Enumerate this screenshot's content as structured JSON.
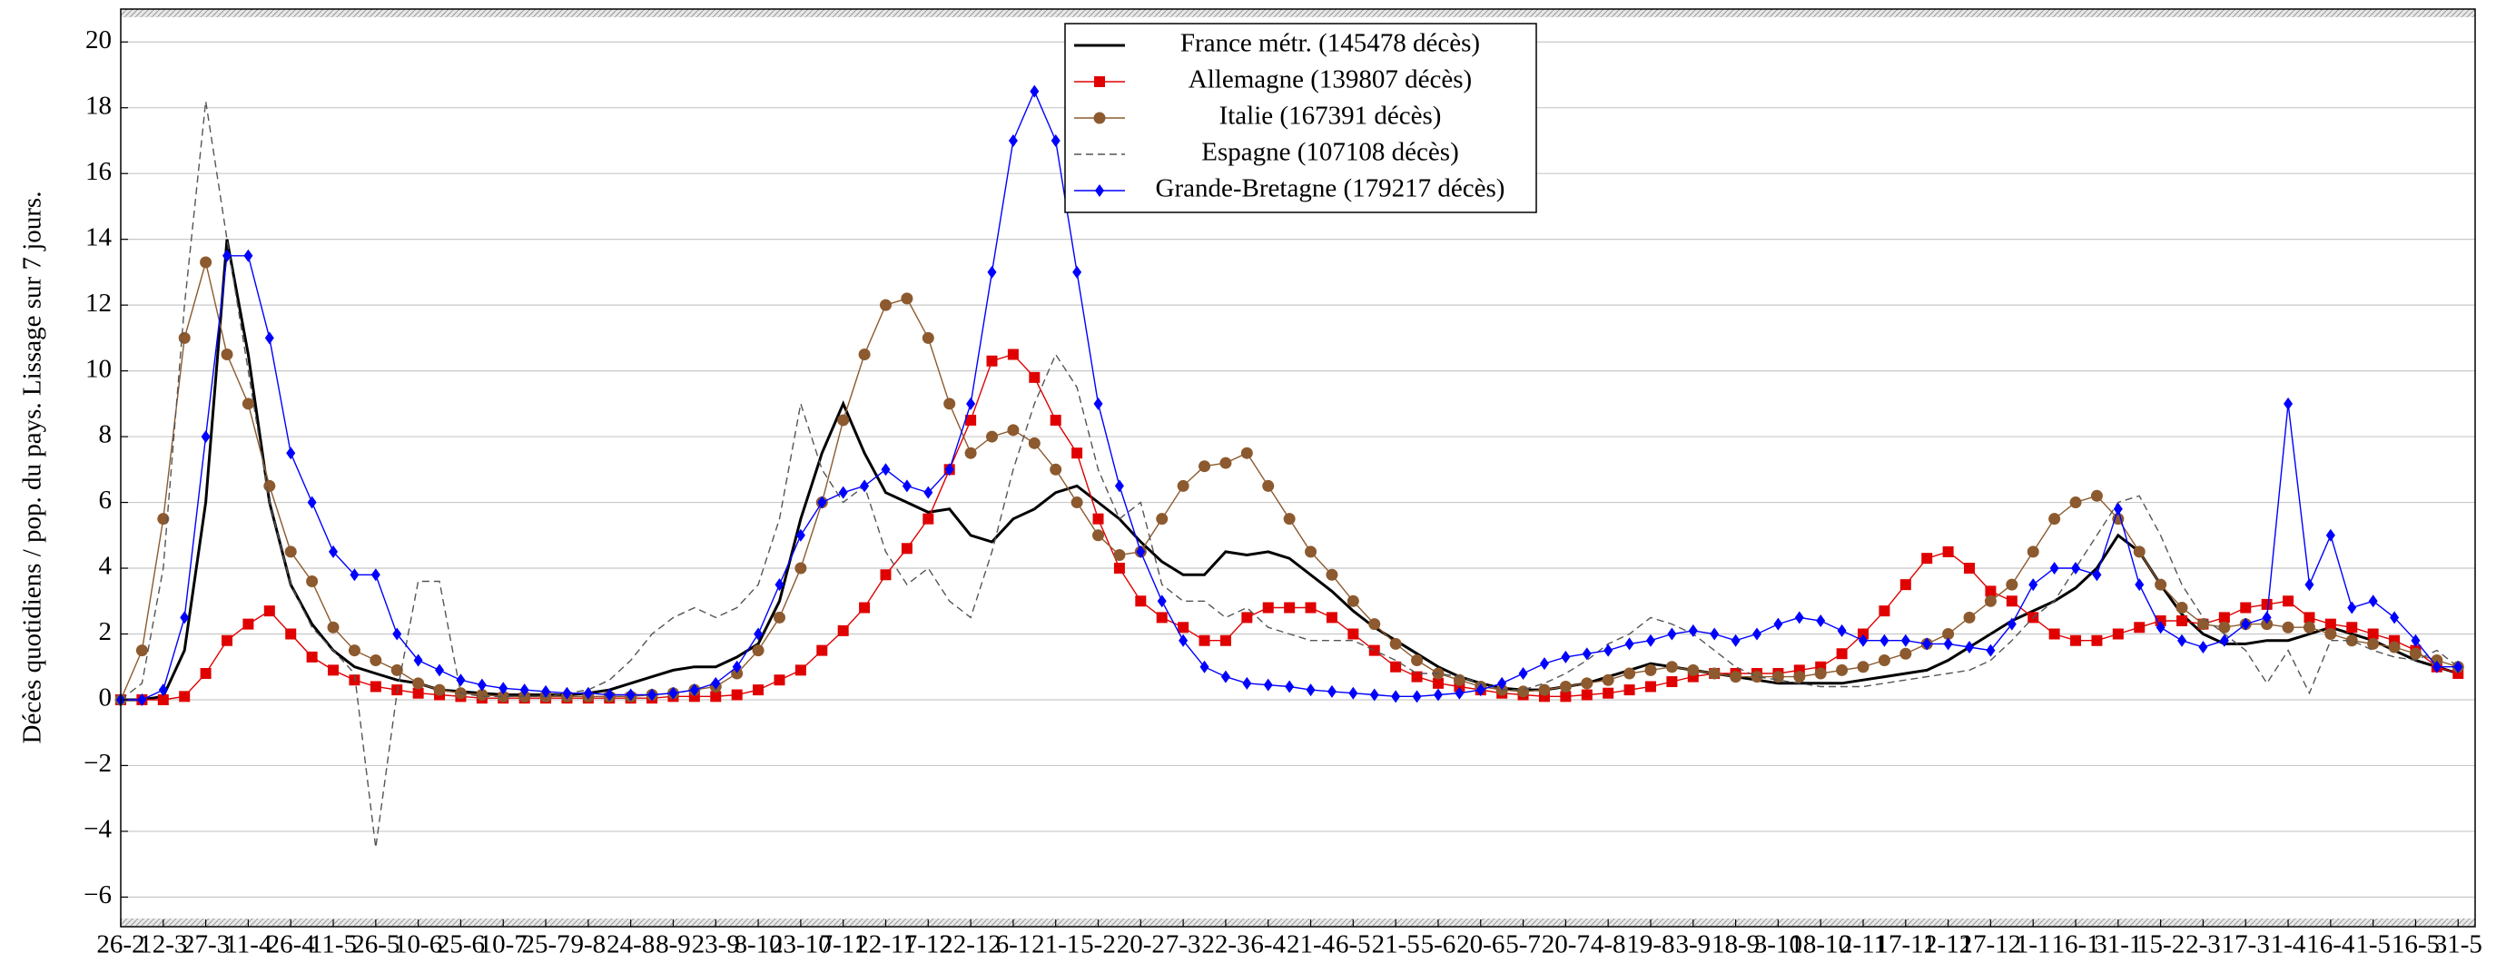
{
  "chart_data": {
    "type": "line",
    "y_label": "Décès quotidiens / pop. du pays. Lissage sur 7 jours.",
    "categories": [
      "26-2",
      null,
      "12-3",
      null,
      "27-3",
      null,
      "11-4",
      null,
      "26-4",
      null,
      "11-5",
      null,
      "26-5",
      null,
      "10-6",
      null,
      "25-6",
      null,
      "10-7",
      null,
      "25-7",
      null,
      "9-8",
      null,
      "24-8",
      null,
      "8-9",
      null,
      "23-9",
      null,
      "8-10",
      null,
      "23-10",
      null,
      "7-11",
      null,
      "22-11",
      null,
      "7-12",
      null,
      "22-12",
      null,
      "6-1",
      null,
      "21-1",
      null,
      "5-2",
      null,
      "20-2",
      null,
      "7-3",
      null,
      "22-3",
      null,
      "6-4",
      null,
      "21-4",
      null,
      "6-5",
      null,
      "21-5",
      null,
      "5-6",
      null,
      "20-6",
      null,
      "5-7",
      null,
      "20-7",
      null,
      "4-8",
      null,
      "19-8",
      null,
      "3-9",
      null,
      "18-9",
      null,
      "3-10",
      null,
      "18-10",
      null,
      "2-11",
      null,
      "17-11",
      null,
      "2-12",
      null,
      "17-12",
      null,
      "1-1",
      null,
      "16-1",
      null,
      "31-1",
      null,
      "15-2",
      null,
      "2-3",
      null,
      "17-3",
      null,
      "1-4",
      null,
      "16-4",
      null,
      "1-5",
      null,
      "16-5",
      null,
      "31-5"
    ],
    "series": [
      {
        "name": "France métr. (145478 décès)",
        "color": "#000000",
        "marker": "none",
        "dashed": false,
        "values": [
          0,
          0,
          0.1,
          1.5,
          6,
          14,
          10.5,
          6,
          3.5,
          2.3,
          1.5,
          1,
          0.8,
          0.6,
          0.5,
          0.3,
          0.25,
          0.2,
          0.15,
          0.15,
          0.15,
          0.15,
          0.2,
          0.3,
          0.5,
          0.7,
          0.9,
          1.0,
          1.0,
          1.3,
          1.7,
          3,
          5.5,
          7.5,
          9,
          7.5,
          6.3,
          6,
          5.7,
          5.8,
          5,
          4.8,
          5.5,
          5.8,
          6.3,
          6.5,
          6,
          5.5,
          4.8,
          4.2,
          3.8,
          3.8,
          4.5,
          4.4,
          4.5,
          4.3,
          3.8,
          3.3,
          2.7,
          2.2,
          1.8,
          1.4,
          1.0,
          0.7,
          0.5,
          0.35,
          0.3,
          0.3,
          0.4,
          0.5,
          0.7,
          0.9,
          1.1,
          1.0,
          0.9,
          0.8,
          0.7,
          0.6,
          0.5,
          0.5,
          0.5,
          0.5,
          0.6,
          0.7,
          0.8,
          0.9,
          1.2,
          1.6,
          2.0,
          2.4,
          2.7,
          3.0,
          3.4,
          4.0,
          5.0,
          4.5,
          3.5,
          2.6,
          2.0,
          1.7,
          1.7,
          1.8,
          1.8,
          2.0,
          2.2,
          2.0,
          1.8,
          1.5,
          1.2,
          1.0,
          0.8
        ]
      },
      {
        "name": "Allemagne (139807 décès)",
        "color": "#e00000",
        "marker": "square",
        "dashed": false,
        "values": [
          0,
          0,
          0,
          0.1,
          0.8,
          1.8,
          2.3,
          2.7,
          2.0,
          1.3,
          0.9,
          0.6,
          0.4,
          0.3,
          0.2,
          0.15,
          0.1,
          0.05,
          0.05,
          0.05,
          0.05,
          0.05,
          0.05,
          0.05,
          0.05,
          0.05,
          0.1,
          0.1,
          0.1,
          0.15,
          0.3,
          0.6,
          0.9,
          1.5,
          2.1,
          2.8,
          3.8,
          4.6,
          5.5,
          7,
          8.5,
          10.3,
          10.5,
          9.8,
          8.5,
          7.5,
          5.5,
          4.0,
          3.0,
          2.5,
          2.2,
          1.8,
          1.8,
          2.5,
          2.8,
          2.8,
          2.8,
          2.5,
          2.0,
          1.5,
          1.0,
          0.7,
          0.5,
          0.4,
          0.3,
          0.2,
          0.15,
          0.1,
          0.1,
          0.15,
          0.2,
          0.3,
          0.4,
          0.55,
          0.7,
          0.8,
          0.8,
          0.8,
          0.8,
          0.9,
          1.0,
          1.4,
          2.0,
          2.7,
          3.5,
          4.3,
          4.5,
          4.0,
          3.3,
          3.0,
          2.5,
          2.0,
          1.8,
          1.8,
          2.0,
          2.2,
          2.4,
          2.4,
          2.3,
          2.5,
          2.8,
          2.9,
          3.0,
          2.5,
          2.3,
          2.2,
          2.0,
          1.8,
          1.5,
          1.0,
          0.8
        ]
      },
      {
        "name": "Italie (167391 décès)",
        "color": "#8c5a2e",
        "marker": "circle",
        "dashed": false,
        "values": [
          0,
          1.5,
          5.5,
          11,
          13.3,
          10.5,
          9,
          6.5,
          4.5,
          3.6,
          2.2,
          1.5,
          1.2,
          0.9,
          0.5,
          0.3,
          0.2,
          0.15,
          0.1,
          0.1,
          0.1,
          0.1,
          0.1,
          0.1,
          0.1,
          0.15,
          0.2,
          0.3,
          0.4,
          0.8,
          1.5,
          2.5,
          4.0,
          6.0,
          8.5,
          10.5,
          12,
          12.2,
          11,
          9,
          7.5,
          8.0,
          8.2,
          7.8,
          7.0,
          6.0,
          5.0,
          4.4,
          4.5,
          5.5,
          6.5,
          7.1,
          7.2,
          7.5,
          6.5,
          5.5,
          4.5,
          3.8,
          3.0,
          2.3,
          1.7,
          1.2,
          0.8,
          0.6,
          0.4,
          0.3,
          0.25,
          0.3,
          0.4,
          0.5,
          0.6,
          0.8,
          0.9,
          1.0,
          0.9,
          0.8,
          0.7,
          0.7,
          0.7,
          0.7,
          0.8,
          0.9,
          1.0,
          1.2,
          1.4,
          1.7,
          2.0,
          2.5,
          3.0,
          3.5,
          4.5,
          5.5,
          6.0,
          6.2,
          5.5,
          4.5,
          3.5,
          2.8,
          2.3,
          2.2,
          2.3,
          2.3,
          2.2,
          2.2,
          2.0,
          1.8,
          1.7,
          1.6,
          1.4,
          1.2,
          1.0
        ]
      },
      {
        "name": "Espagne (107108 décès)",
        "color": "#555555",
        "marker": "none",
        "dashed": true,
        "values": [
          0,
          0.5,
          4,
          12,
          18.2,
          14,
          10,
          6,
          3.5,
          2.2,
          1.5,
          0.8,
          -4.5,
          0.2,
          3.6,
          3.6,
          0.2,
          0.1,
          0.1,
          0.1,
          0.1,
          0.2,
          0.3,
          0.6,
          1.2,
          2.0,
          2.5,
          2.8,
          2.5,
          2.8,
          3.5,
          5.5,
          9,
          7,
          6,
          6.5,
          4.5,
          3.5,
          4,
          3.0,
          2.5,
          4.5,
          7.0,
          9.0,
          10.5,
          9.5,
          7,
          5.5,
          6.0,
          3.5,
          3.0,
          3.0,
          2.5,
          2.8,
          2.2,
          2.0,
          1.8,
          1.8,
          1.8,
          1.5,
          1.2,
          0.8,
          0.8,
          0.7,
          0.5,
          0.3,
          0.3,
          0.5,
          0.8,
          1.2,
          1.7,
          2.0,
          2.5,
          2.3,
          2.0,
          1.5,
          1.0,
          0.7,
          0.6,
          0.5,
          0.4,
          0.4,
          0.4,
          0.5,
          0.6,
          0.7,
          0.8,
          0.9,
          1.2,
          1.8,
          2.5,
          3.0,
          4.0,
          5.0,
          6.0,
          6.2,
          5.0,
          3.5,
          2.5,
          2.0,
          1.5,
          0.5,
          1.5,
          0.2,
          1.8,
          1.8,
          1.5,
          1.3,
          1.2,
          1.5,
          1.0
        ]
      },
      {
        "name": "Grande-Bretagne (179217 décès)",
        "color": "#0000ff",
        "marker": "diamond",
        "dashed": false,
        "values": [
          0,
          0,
          0.3,
          2.5,
          8,
          13.5,
          13.5,
          11,
          7.5,
          6.0,
          4.5,
          3.8,
          3.8,
          2.0,
          1.2,
          0.9,
          0.6,
          0.45,
          0.35,
          0.3,
          0.25,
          0.2,
          0.2,
          0.15,
          0.15,
          0.15,
          0.2,
          0.3,
          0.5,
          1.0,
          2.0,
          3.5,
          5.0,
          6.0,
          6.3,
          6.5,
          7.0,
          6.5,
          6.3,
          7.0,
          9,
          13,
          17,
          18.5,
          17,
          13,
          9,
          6.5,
          4.5,
          3.0,
          1.8,
          1.0,
          0.7,
          0.5,
          0.45,
          0.4,
          0.3,
          0.25,
          0.2,
          0.15,
          0.1,
          0.1,
          0.15,
          0.2,
          0.3,
          0.5,
          0.8,
          1.1,
          1.3,
          1.4,
          1.5,
          1.7,
          1.8,
          2.0,
          2.1,
          2.0,
          1.8,
          2.0,
          2.3,
          2.5,
          2.4,
          2.1,
          1.8,
          1.8,
          1.8,
          1.7,
          1.7,
          1.6,
          1.5,
          2.3,
          3.5,
          4.0,
          4.0,
          3.8,
          5.8,
          3.5,
          2.2,
          1.8,
          1.6,
          1.8,
          2.3,
          2.5,
          9.0,
          3.5,
          5.0,
          2.8,
          3.0,
          2.5,
          1.8,
          1.0,
          1.0
        ]
      }
    ],
    "ylim": [
      -6.9,
      21
    ],
    "yticks": [
      {
        "value": -6,
        "label": "−6"
      },
      {
        "value": -4,
        "label": "−4"
      },
      {
        "value": -2,
        "label": "−2"
      },
      0,
      2,
      4,
      6,
      8,
      10,
      12,
      14,
      16,
      18,
      20
    ],
    "grid": true,
    "legend": "top"
  }
}
